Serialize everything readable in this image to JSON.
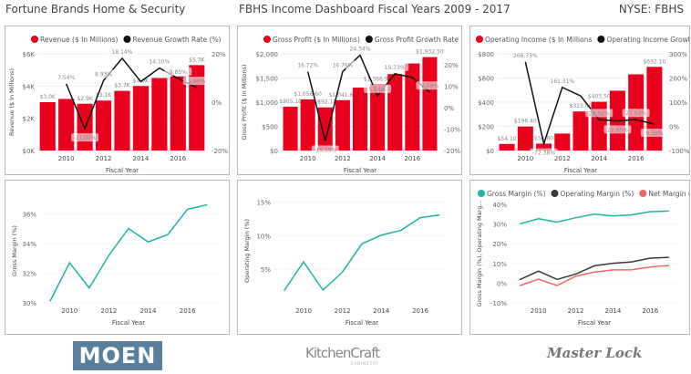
{
  "header": {
    "left": "Fortune Brands Home & Security",
    "center": "FBHS Income Dashboard Fiscal Years 2009 - 2017",
    "right": "NYSE: FBHS"
  },
  "logos": {
    "moen": "MOEN",
    "kitchencraft": "KitchenCraft",
    "kitchencraft_sub": "CABINETRY",
    "masterlock": "Master Lock"
  },
  "colors": {
    "bar": "#e8001c",
    "line": "#111111",
    "teal": "#1fb5a0",
    "dark": "#3a3a3a",
    "salmon": "#f0645f",
    "moen": "#5a7f9a"
  },
  "chart_data": [
    {
      "type": "bar",
      "title": "Revenue",
      "xlabel": "Fiscal Year",
      "ylabel": "Revenue ($ In Millions)",
      "legend": [
        "Revenue ($ In Millions)",
        "Revenue Growth Rate (%)"
      ],
      "x": [
        2009,
        2010,
        2011,
        2012,
        2013,
        2014,
        2015,
        2016,
        2017
      ],
      "xticks": [
        2010,
        2012,
        2014,
        2016
      ],
      "bars": [
        3.0,
        3.2,
        2.9,
        3.1,
        3.7,
        4.0,
        4.5,
        4.6,
        5.3
      ],
      "bar_labels": [
        "$3.0K",
        "",
        "$2.9K",
        "$3.1K",
        "$3.7K",
        "$4.0K",
        "",
        "",
        "$5.3K"
      ],
      "ylim": [
        0,
        6
      ],
      "yticks": [
        "$0K",
        "$2K",
        "$4K",
        "$6K"
      ],
      "line": [
        null,
        7.54,
        -11.0,
        8.93,
        18.14,
        8.5,
        14.1,
        9.85,
        5.99
      ],
      "line_labels": [
        "",
        "7.54%",
        "-11.00%",
        "8.93%",
        "18.14%",
        "",
        "14.10%",
        "9.85%",
        "5.99%"
      ],
      "y2lim": [
        -20,
        20
      ],
      "y2ticks": [
        "-20%",
        "0%",
        "20%"
      ]
    },
    {
      "type": "bar",
      "title": "Gross Profit",
      "xlabel": "Fiscal Year",
      "ylabel": "Gross Profit ($ In Millions)",
      "legend": [
        "Gross Profit ($ In Millions)",
        "Gross Profit Growth Rate (%)"
      ],
      "x": [
        2009,
        2010,
        2011,
        2012,
        2013,
        2014,
        2015,
        2016,
        2017
      ],
      "xticks": [
        2010,
        2012,
        2014,
        2016
      ],
      "bars": [
        905.1,
        1056.6,
        892.1,
        1041.6,
        1300,
        1366.9,
        1580,
        1800,
        1932.5
      ],
      "bar_labels": [
        "$905.10",
        "$1,056.60",
        "$892.10",
        "$1,041.60",
        "",
        "$1,366.90",
        "",
        "",
        "$1,932.50"
      ],
      "ylim": [
        0,
        2000
      ],
      "yticks": [
        "$0",
        "$500",
        "$1,000",
        "$1,500",
        "$2,000"
      ],
      "line": [
        null,
        16.72,
        -15.55,
        16.76,
        24.34,
        5.54,
        15.73,
        14.0,
        7.09
      ],
      "line_labels": [
        "",
        "16.72%",
        "-15.55%",
        "16.76%",
        "24.34%",
        "5.54%",
        "15.73%",
        "",
        "7.09%"
      ],
      "y2lim": [
        -20,
        25
      ],
      "y2ticks": [
        "-20%",
        "-10%",
        "0%",
        "10%",
        "20%"
      ]
    },
    {
      "type": "bar",
      "title": "Operating Income",
      "xlabel": "Fiscal Year",
      "ylabel": "",
      "legend": [
        "Operating Income ($ In Millions",
        "Operating Income Growth Rate (..."
      ],
      "x": [
        2009,
        2010,
        2011,
        2012,
        2013,
        2014,
        2015,
        2016,
        2017
      ],
      "xticks": [
        2010,
        2012,
        2014,
        2016
      ],
      "bars": [
        54.1,
        198.4,
        56.8,
        140,
        323.0,
        403.5,
        495,
        630,
        692.1
      ],
      "bar_labels": [
        "$54.10",
        "$198.40",
        "$56.80",
        "",
        "$323.00",
        "$403.50",
        "",
        "",
        "$692.10"
      ],
      "ylim": [
        0,
        800
      ],
      "yticks": [
        "$0",
        "$200",
        "$400",
        "$600",
        "$800"
      ],
      "line": [
        null,
        266.73,
        -72.38,
        161.31,
        126,
        26.92,
        22.95,
        27.53,
        9.39
      ],
      "line_labels": [
        "",
        "266.73%",
        "-72.38%",
        "161.31%",
        "",
        "26.92%",
        "22.95%",
        "27.53%",
        "9.39%"
      ],
      "y2lim": [
        -100,
        300
      ],
      "y2ticks": [
        "-100%",
        "0%",
        "100%",
        "200%",
        "300%"
      ]
    },
    {
      "type": "line",
      "xlabel": "Fiscal Year",
      "ylabel": "Gross Margin (%)",
      "legend": [],
      "x": [
        2009,
        2010,
        2011,
        2012,
        2013,
        2014,
        2015,
        2016,
        2017
      ],
      "xticks": [
        2010,
        2012,
        2014,
        2016
      ],
      "ylim": [
        30,
        37
      ],
      "ytickvals": [
        30,
        32,
        34,
        36
      ],
      "yticks": [
        "30%",
        "32%",
        "34%",
        "36%"
      ],
      "series": [
        {
          "name": "Gross Margin (%)",
          "values": [
            30.1,
            32.7,
            31.0,
            33.2,
            35.0,
            34.1,
            34.6,
            36.3,
            36.6
          ],
          "color": "#1fb5a0"
        }
      ]
    },
    {
      "type": "line",
      "xlabel": "Fiscal Year",
      "ylabel": "Operating Margin (%)",
      "legend": [],
      "x": [
        2009,
        2010,
        2011,
        2012,
        2013,
        2014,
        2015,
        2016,
        2017
      ],
      "xticks": [
        2010,
        2012,
        2014,
        2016
      ],
      "ylim": [
        0,
        15.5
      ],
      "ytickvals": [
        5,
        10,
        15
      ],
      "yticks": [
        "5%",
        "10%",
        "15%"
      ],
      "series": [
        {
          "name": "Operating Margin (%)",
          "values": [
            1.8,
            6.1,
            1.9,
            4.6,
            8.8,
            10.1,
            10.8,
            12.7,
            13.1
          ],
          "color": "#1fb5a0"
        }
      ]
    },
    {
      "type": "line",
      "xlabel": "Fiscal Year",
      "ylabel": "Gross Margin (%), Operating Marg...",
      "legend": [
        "Gross Margin (%)",
        "Operating Margin (%)",
        "Net Margin (%)"
      ],
      "x": [
        2009,
        2010,
        2011,
        2012,
        2013,
        2014,
        2015,
        2016,
        2017
      ],
      "xticks": [
        2010,
        2012,
        2014,
        2016
      ],
      "ylim": [
        -10,
        40
      ],
      "ytickvals": [
        -10,
        0,
        10,
        20,
        30,
        40
      ],
      "yticks": [
        "-10%",
        "0%",
        "10%",
        "20%",
        "30%",
        "40%"
      ],
      "series": [
        {
          "name": "Gross Margin (%)",
          "values": [
            30.1,
            32.7,
            31.0,
            33.2,
            35.0,
            34.1,
            34.6,
            36.3,
            36.6
          ],
          "color": "#1fb5a0"
        },
        {
          "name": "Operating Margin (%)",
          "values": [
            1.8,
            6.1,
            1.9,
            4.6,
            8.8,
            10.1,
            10.8,
            12.7,
            13.1
          ],
          "color": "#3a3a3a"
        },
        {
          "name": "Net Margin (%)",
          "values": [
            -1.3,
            2.0,
            -1.2,
            3.5,
            5.6,
            6.7,
            6.8,
            8.2,
            9.0
          ],
          "color": "#f0645f"
        }
      ]
    }
  ]
}
